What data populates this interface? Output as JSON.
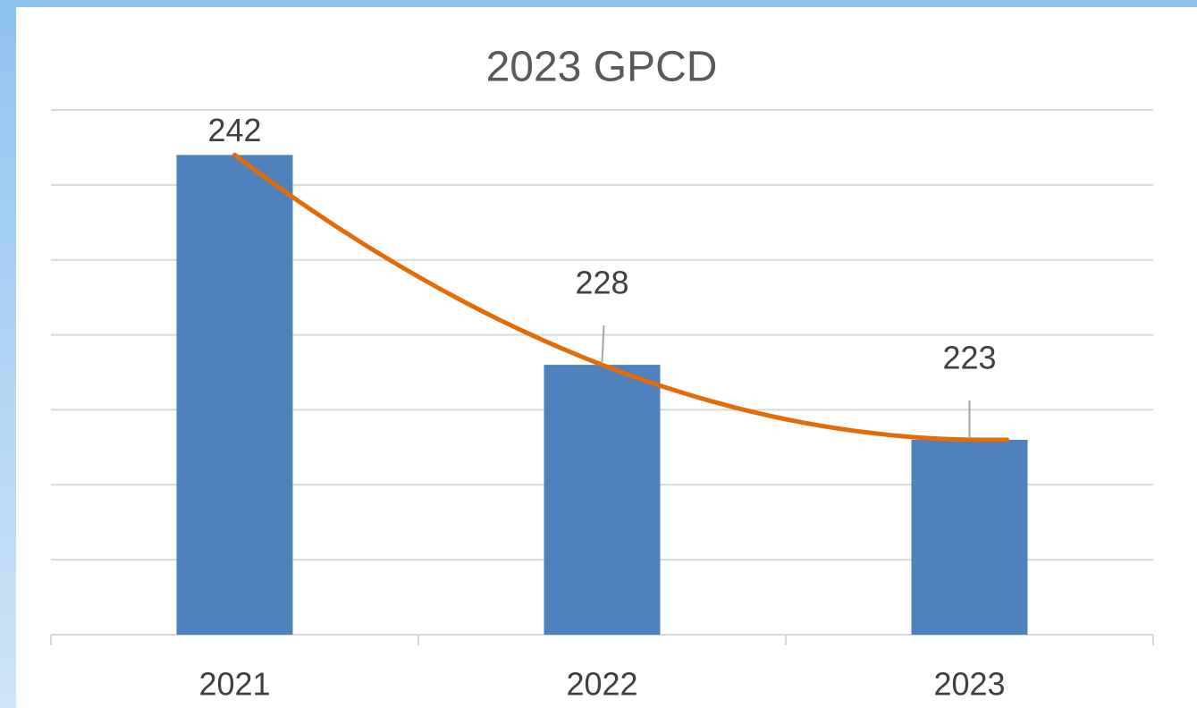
{
  "chart_data": {
    "type": "bar",
    "title": "2023 GPCD",
    "categories": [
      "2021",
      "2022",
      "2023"
    ],
    "values": [
      242,
      228,
      223
    ],
    "color": "#4f81bd",
    "ylim": [
      210,
      245
    ],
    "yticks": [
      210,
      215,
      220,
      225,
      230,
      235,
      240,
      245
    ],
    "grid": true,
    "trendline": {
      "type": "polynomial",
      "color": "#e36c09"
    }
  }
}
